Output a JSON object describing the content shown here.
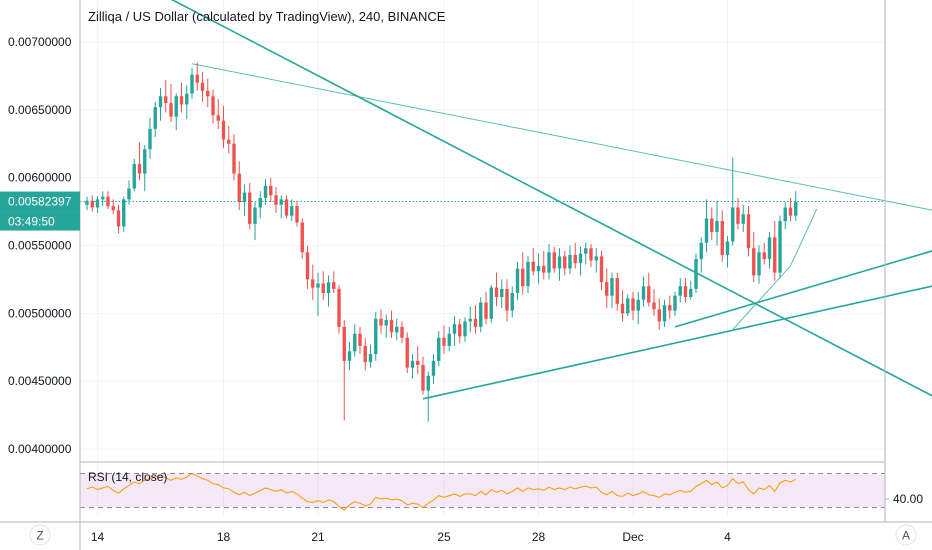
{
  "chart_data": {
    "type": "candlestick",
    "title": "Zilliqa / US Dollar (calculated by TradingView), 240, BINANCE",
    "y_ticks": [
      "0.00400000",
      "0.00450000",
      "0.00500000",
      "0.00550000",
      "0.00600000",
      "0.00650000",
      "0.00700000"
    ],
    "y_tick_values": [
      0.004,
      0.0045,
      0.005,
      0.0055,
      0.006,
      0.0065,
      0.007
    ],
    "ylim": [
      0.00385,
      0.00725
    ],
    "x_ticks": [
      {
        "label": "14",
        "day": 0
      },
      {
        "label": "18",
        "day": 4
      },
      {
        "label": "21",
        "day": 7
      },
      {
        "label": "25",
        "day": 11
      },
      {
        "label": "28",
        "day": 14
      },
      {
        "label": "Dec",
        "day": 17
      },
      {
        "label": "4",
        "day": 20
      }
    ],
    "last_price": "0.00582397",
    "countdown": "03:49:50",
    "up_color": "#26a69a",
    "down_color": "#ef5350",
    "trendline_color": "#26a69a",
    "candles": [
      [
        0.0058,
        0.00586,
        0.00576,
        0.00583
      ],
      [
        0.00583,
        0.00587,
        0.00575,
        0.00578
      ],
      [
        0.00578,
        0.00586,
        0.00574,
        0.00584
      ],
      [
        0.00584,
        0.0059,
        0.00579,
        0.00586
      ],
      [
        0.00586,
        0.0059,
        0.00577,
        0.00579
      ],
      [
        0.00579,
        0.00584,
        0.00573,
        0.00576
      ],
      [
        0.00576,
        0.0058,
        0.00559,
        0.00564
      ],
      [
        0.00564,
        0.00586,
        0.0056,
        0.00584
      ],
      [
        0.00584,
        0.00598,
        0.0058,
        0.00592
      ],
      [
        0.00592,
        0.00614,
        0.0059,
        0.0061
      ],
      [
        0.0061,
        0.00626,
        0.00598,
        0.00603
      ],
      [
        0.00603,
        0.00624,
        0.0059,
        0.00621
      ],
      [
        0.00621,
        0.00644,
        0.00614,
        0.00636
      ],
      [
        0.00636,
        0.00656,
        0.0063,
        0.00652
      ],
      [
        0.00652,
        0.00666,
        0.00642,
        0.0066
      ],
      [
        0.0066,
        0.00672,
        0.00648,
        0.00655
      ],
      [
        0.00655,
        0.00669,
        0.00641,
        0.00645
      ],
      [
        0.00645,
        0.00662,
        0.00635,
        0.0066
      ],
      [
        0.0066,
        0.0067,
        0.00648,
        0.00654
      ],
      [
        0.00654,
        0.00668,
        0.00643,
        0.00662
      ],
      [
        0.00662,
        0.00681,
        0.00658,
        0.00676
      ],
      [
        0.00676,
        0.00685,
        0.00664,
        0.0067
      ],
      [
        0.0067,
        0.00678,
        0.00656,
        0.00664
      ],
      [
        0.00664,
        0.00673,
        0.00652,
        0.0066
      ],
      [
        0.0066,
        0.00665,
        0.0064,
        0.00646
      ],
      [
        0.00646,
        0.00658,
        0.00636,
        0.00642
      ],
      [
        0.00642,
        0.00653,
        0.00622,
        0.00628
      ],
      [
        0.00628,
        0.00638,
        0.00618,
        0.00625
      ],
      [
        0.00625,
        0.00632,
        0.00598,
        0.00603
      ],
      [
        0.00603,
        0.00612,
        0.00576,
        0.00582
      ],
      [
        0.00582,
        0.00595,
        0.00572,
        0.00589
      ],
      [
        0.00589,
        0.00596,
        0.00562,
        0.00566
      ],
      [
        0.00566,
        0.00582,
        0.00554,
        0.00578
      ],
      [
        0.00578,
        0.0059,
        0.0057,
        0.00585
      ],
      [
        0.00585,
        0.00599,
        0.0058,
        0.00594
      ],
      [
        0.00594,
        0.006,
        0.00582,
        0.00587
      ],
      [
        0.00587,
        0.00593,
        0.00574,
        0.0058
      ],
      [
        0.0058,
        0.00587,
        0.0057,
        0.00584
      ],
      [
        0.00584,
        0.00587,
        0.0057,
        0.00572
      ],
      [
        0.00572,
        0.00584,
        0.00568,
        0.00579
      ],
      [
        0.00579,
        0.00583,
        0.00564,
        0.00567
      ],
      [
        0.00567,
        0.0057,
        0.0054,
        0.00545
      ],
      [
        0.00545,
        0.0055,
        0.00518,
        0.00525
      ],
      [
        0.00525,
        0.00536,
        0.0051,
        0.00519
      ],
      [
        0.00519,
        0.0053,
        0.00498,
        0.00522
      ],
      [
        0.00522,
        0.00531,
        0.0051,
        0.00515
      ],
      [
        0.00515,
        0.00528,
        0.00505,
        0.00523
      ],
      [
        0.00523,
        0.00531,
        0.00515,
        0.00518
      ],
      [
        0.00518,
        0.00521,
        0.00485,
        0.0049
      ],
      [
        0.0049,
        0.00495,
        0.00421,
        0.00465
      ],
      [
        0.00465,
        0.00479,
        0.00458,
        0.00472
      ],
      [
        0.00472,
        0.00492,
        0.00468,
        0.00485
      ],
      [
        0.00485,
        0.0049,
        0.0047,
        0.00476
      ],
      [
        0.00476,
        0.00482,
        0.00458,
        0.00464
      ],
      [
        0.00464,
        0.00477,
        0.0046,
        0.0047
      ],
      [
        0.0047,
        0.00501,
        0.00465,
        0.00496
      ],
      [
        0.00496,
        0.00503,
        0.00485,
        0.00491
      ],
      [
        0.00491,
        0.00499,
        0.00482,
        0.00495
      ],
      [
        0.00495,
        0.00502,
        0.00482,
        0.00486
      ],
      [
        0.00486,
        0.00496,
        0.0048,
        0.0049
      ],
      [
        0.0049,
        0.00494,
        0.00478,
        0.00482
      ],
      [
        0.00482,
        0.00486,
        0.00456,
        0.0046
      ],
      [
        0.0046,
        0.0047,
        0.00452,
        0.00465
      ],
      [
        0.00465,
        0.00476,
        0.00455,
        0.00462
      ],
      [
        0.00462,
        0.00468,
        0.0044,
        0.00443
      ],
      [
        0.00443,
        0.00457,
        0.0042,
        0.00454
      ],
      [
        0.00454,
        0.0047,
        0.00448,
        0.00465
      ],
      [
        0.00465,
        0.00487,
        0.00461,
        0.00482
      ],
      [
        0.00482,
        0.00491,
        0.0047,
        0.00476
      ],
      [
        0.00476,
        0.0049,
        0.00472,
        0.00485
      ],
      [
        0.00485,
        0.00498,
        0.00476,
        0.00492
      ],
      [
        0.00492,
        0.00496,
        0.00478,
        0.00483
      ],
      [
        0.00483,
        0.00497,
        0.00479,
        0.00494
      ],
      [
        0.00494,
        0.00505,
        0.00486,
        0.00496
      ],
      [
        0.00496,
        0.00506,
        0.00485,
        0.0049
      ],
      [
        0.0049,
        0.00512,
        0.00486,
        0.00508
      ],
      [
        0.00508,
        0.00516,
        0.00492,
        0.00496
      ],
      [
        0.00496,
        0.00521,
        0.00493,
        0.00519
      ],
      [
        0.00519,
        0.0053,
        0.00505,
        0.00512
      ],
      [
        0.00512,
        0.00525,
        0.00504,
        0.00518
      ],
      [
        0.00518,
        0.00525,
        0.00494,
        0.00502
      ],
      [
        0.00502,
        0.0052,
        0.00497,
        0.00515
      ],
      [
        0.00515,
        0.00538,
        0.0051,
        0.00533
      ],
      [
        0.00533,
        0.00545,
        0.00514,
        0.0052
      ],
      [
        0.0052,
        0.00542,
        0.00515,
        0.00538
      ],
      [
        0.00538,
        0.00548,
        0.00528,
        0.00531
      ],
      [
        0.00531,
        0.00544,
        0.00522,
        0.00535
      ],
      [
        0.00535,
        0.00546,
        0.00525,
        0.0053
      ],
      [
        0.0053,
        0.00551,
        0.00525,
        0.00545
      ],
      [
        0.00545,
        0.00549,
        0.0053,
        0.00533
      ],
      [
        0.00533,
        0.00548,
        0.00524,
        0.00542
      ],
      [
        0.00542,
        0.00546,
        0.00528,
        0.00533
      ],
      [
        0.00533,
        0.0055,
        0.00529,
        0.00543
      ],
      [
        0.00543,
        0.00552,
        0.00533,
        0.00537
      ],
      [
        0.00537,
        0.00549,
        0.00528,
        0.00544
      ],
      [
        0.00544,
        0.00552,
        0.00536,
        0.00548
      ],
      [
        0.00548,
        0.00551,
        0.00534,
        0.00539
      ],
      [
        0.00539,
        0.00548,
        0.0053,
        0.00542
      ],
      [
        0.00542,
        0.00546,
        0.00517,
        0.00523
      ],
      [
        0.00523,
        0.00533,
        0.00504,
        0.00513
      ],
      [
        0.00513,
        0.0053,
        0.00504,
        0.00526
      ],
      [
        0.00526,
        0.0053,
        0.00502,
        0.00507
      ],
      [
        0.00507,
        0.00517,
        0.00494,
        0.005
      ],
      [
        0.005,
        0.00514,
        0.00498,
        0.00511
      ],
      [
        0.00511,
        0.00516,
        0.00495,
        0.00502
      ],
      [
        0.00502,
        0.00516,
        0.00492,
        0.0051
      ],
      [
        0.0051,
        0.00527,
        0.00505,
        0.0052
      ],
      [
        0.0052,
        0.0053,
        0.00505,
        0.00508
      ],
      [
        0.00508,
        0.00518,
        0.00498,
        0.00503
      ],
      [
        0.00503,
        0.00511,
        0.00488,
        0.00494
      ],
      [
        0.00494,
        0.0051,
        0.0049,
        0.00506
      ],
      [
        0.00506,
        0.00513,
        0.00496,
        0.00502
      ],
      [
        0.00502,
        0.00516,
        0.00498,
        0.00513
      ],
      [
        0.00513,
        0.00526,
        0.00508,
        0.0052
      ],
      [
        0.0052,
        0.00526,
        0.00508,
        0.00512
      ],
      [
        0.00512,
        0.00524,
        0.0051,
        0.00518
      ],
      [
        0.00518,
        0.00544,
        0.00515,
        0.0054
      ],
      [
        0.0054,
        0.00556,
        0.0053,
        0.00552
      ],
      [
        0.00552,
        0.00584,
        0.00545,
        0.0057
      ],
      [
        0.0057,
        0.00578,
        0.00554,
        0.0056
      ],
      [
        0.0056,
        0.00583,
        0.0055,
        0.00568
      ],
      [
        0.00568,
        0.00576,
        0.00538,
        0.00543
      ],
      [
        0.00543,
        0.00557,
        0.00534,
        0.00553
      ],
      [
        0.00553,
        0.00615,
        0.0055,
        0.00578
      ],
      [
        0.00578,
        0.00585,
        0.00562,
        0.00566
      ],
      [
        0.00566,
        0.0058,
        0.0056,
        0.00573
      ],
      [
        0.00573,
        0.00579,
        0.00542,
        0.00548
      ],
      [
        0.00548,
        0.0056,
        0.00523,
        0.00528
      ],
      [
        0.00528,
        0.0055,
        0.00522,
        0.00545
      ],
      [
        0.00545,
        0.00552,
        0.00536,
        0.0054
      ],
      [
        0.0054,
        0.0056,
        0.00533,
        0.00556
      ],
      [
        0.00556,
        0.00568,
        0.00524,
        0.0053
      ],
      [
        0.0053,
        0.00572,
        0.00526,
        0.00568
      ],
      [
        0.00568,
        0.00582,
        0.00562,
        0.00578
      ],
      [
        0.00578,
        0.00585,
        0.00568,
        0.00572
      ],
      [
        0.00572,
        0.0059,
        0.00568,
        0.00582
      ]
    ],
    "trendlines": [
      {
        "from": [
          -8,
          0.0078
        ],
        "to": [
          172,
          0.00417
        ]
      },
      {
        "from": [
          20,
          0.00684
        ],
        "to": [
          182,
          0.0056
        ]
      },
      {
        "from": [
          64,
          0.00437
        ],
        "to": [
          182,
          0.00538
        ]
      },
      {
        "from": [
          112,
          0.0049
        ],
        "to": [
          182,
          0.0057
        ]
      },
      {
        "from": [
          123,
          0.00488
        ],
        "to": [
          134,
          0.00535
        ]
      },
      {
        "from": [
          134,
          0.00535
        ],
        "to": [
          139,
          0.00577
        ]
      }
    ],
    "rsi": {
      "title": "RSI (14, close)",
      "tick": "40.00",
      "tick_value": 40,
      "ylim": [
        20,
        80
      ],
      "band": [
        30,
        70
      ],
      "color": "#ff9800",
      "band_color": "#9c27b0",
      "values": [
        52,
        54,
        51,
        53,
        55,
        50,
        47,
        52,
        56,
        60,
        58,
        62,
        64,
        66,
        68,
        65,
        62,
        65,
        63,
        66,
        70,
        67,
        64,
        62,
        58,
        57,
        53,
        52,
        48,
        45,
        48,
        44,
        47,
        50,
        53,
        51,
        49,
        51,
        47,
        49,
        46,
        41,
        37,
        36,
        38,
        36,
        39,
        37,
        31,
        27,
        33,
        37,
        35,
        32,
        34,
        42,
        40,
        41,
        39,
        40,
        38,
        33,
        35,
        34,
        30,
        35,
        39,
        44,
        42,
        44,
        46,
        43,
        46,
        46,
        44,
        49,
        45,
        51,
        48,
        50,
        46,
        49,
        53,
        49,
        53,
        51,
        52,
        50,
        54,
        51,
        53,
        51,
        54,
        52,
        54,
        55,
        53,
        54,
        48,
        45,
        49,
        44,
        43,
        47,
        44,
        46,
        49,
        45,
        44,
        42,
        46,
        45,
        48,
        50,
        48,
        49,
        55,
        58,
        62,
        57,
        60,
        53,
        56,
        64,
        58,
        60,
        51,
        46,
        53,
        51,
        56,
        49,
        59,
        62,
        60,
        63
      ]
    },
    "corner_left": "Z",
    "corner_right": "A"
  }
}
